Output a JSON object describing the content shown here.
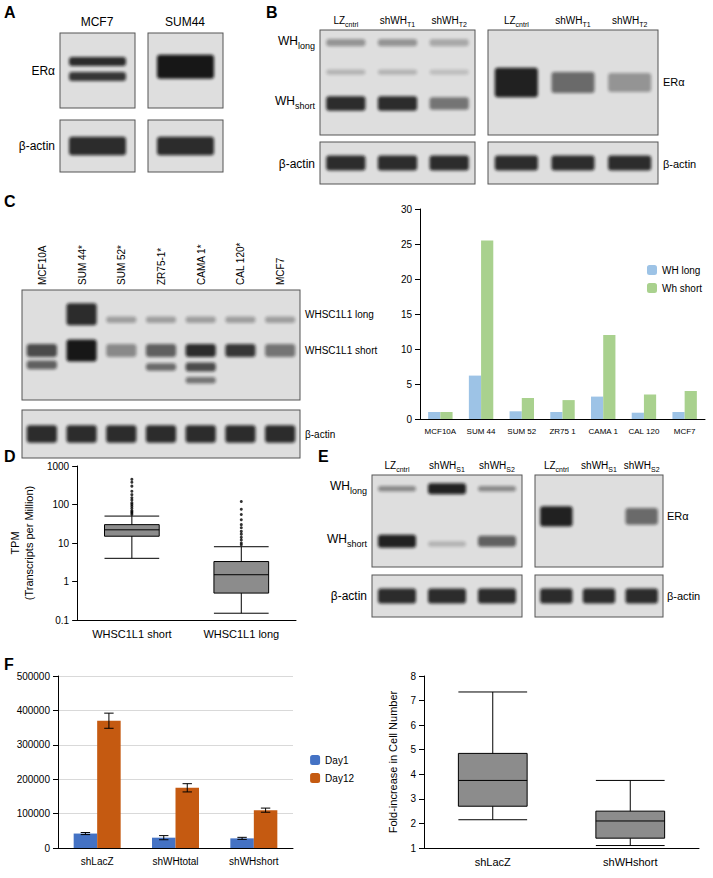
{
  "panel_letters": [
    "A",
    "B",
    "C",
    "D",
    "E",
    "F"
  ],
  "blots": {
    "A": {
      "lanes": [
        "MCF7",
        "SUM44"
      ],
      "rows": [
        "ERα",
        "β-actin"
      ]
    },
    "B": {
      "left": {
        "lanes": [
          {
            "text": "LZ",
            "sub": "cntrl"
          },
          {
            "text": "shWH",
            "sub": "T1"
          },
          {
            "text": "shWH",
            "sub": "T2"
          }
        ],
        "rows": [
          {
            "text": "WH",
            "sub": "long"
          },
          {
            "text": "WH",
            "sub": "short"
          },
          "β-actin"
        ]
      },
      "right": {
        "lanes": [
          {
            "text": "LZ",
            "sub": "cntrl"
          },
          {
            "text": "shWH",
            "sub": "T1"
          },
          {
            "text": "shWH",
            "sub": "T2"
          }
        ],
        "rows": [
          "ERα",
          "β-actin"
        ]
      }
    },
    "C": {
      "lanes": [
        "MCF10A",
        "SUM 44*",
        "SUM 52*",
        "ZR75-1*",
        "CAMA 1*",
        "CAL 120*",
        "MCF7"
      ],
      "rows": [
        "WHSC1L1 long",
        "WHSC1L1 short",
        "β-actin"
      ]
    },
    "E": {
      "left": {
        "lanes": [
          {
            "text": "LZ",
            "sub": "cntrl"
          },
          {
            "text": "shWH",
            "sub": "S1"
          },
          {
            "text": "shWH",
            "sub": "S2"
          }
        ],
        "rows": [
          {
            "text": "WH",
            "sub": "long"
          },
          {
            "text": "WH",
            "sub": "short"
          },
          "β-actin"
        ]
      },
      "right": {
        "lanes": [
          {
            "text": "LZ",
            "sub": "cntrl"
          },
          {
            "text": "shWH",
            "sub": "S1"
          },
          {
            "text": "shWH",
            "sub": "S2"
          }
        ],
        "rows": [
          "ERα",
          "β-actin"
        ]
      }
    }
  },
  "chart_data": [
    {
      "type": "bar",
      "categories": [
        "MCF10A",
        "SUM 44",
        "SUM 52",
        "ZR75 1",
        "CAMA 1",
        "CAL 120",
        "MCF7"
      ],
      "series": [
        {
          "name": "WH long",
          "color": "#9dc3e6",
          "values": [
            1,
            6.2,
            1.1,
            1,
            3.2,
            0.9,
            1
          ]
        },
        {
          "name": "Wh short",
          "color": "#a9d18e",
          "values": [
            1,
            25.5,
            3,
            2.7,
            12,
            3.5,
            4
          ]
        }
      ],
      "ylim": [
        0,
        30
      ],
      "yticks": [
        0,
        5,
        10,
        15,
        20,
        25,
        30
      ],
      "legend": "right",
      "grid": false
    },
    {
      "type": "boxplot",
      "categories": [
        "WHSC1L1 short",
        "WHSC1L1 long"
      ],
      "ylabel": "TPM\n(Transcripts per Million)",
      "log": "y",
      "ylim": [
        0.1,
        1000
      ],
      "yticks": [
        0.1,
        1,
        10,
        100,
        1000
      ],
      "boxes": [
        [
          4,
          15,
          22,
          30,
          50
        ],
        [
          0.15,
          0.5,
          1.5,
          3.3,
          8
        ]
      ],
      "outliers": [
        [
          55,
          60,
          65,
          70,
          80,
          90,
          100,
          110,
          130,
          150,
          180,
          220,
          300,
          380,
          450
        ],
        [
          9,
          10,
          12,
          14,
          17,
          20,
          25,
          30,
          40,
          55,
          75,
          120
        ]
      ],
      "color": "#8c8c8c",
      "marker": "circle",
      "grid": false
    },
    {
      "type": "bar",
      "categories": [
        "shLacZ",
        "shWHtotal",
        "shWHshort"
      ],
      "series": [
        {
          "name": "Day1",
          "color": "#4472c4",
          "values": [
            42000,
            30000,
            28000
          ],
          "errors": [
            3000,
            6000,
            3000
          ]
        },
        {
          "name": "Day12",
          "color": "#c55a11",
          "values": [
            370000,
            175000,
            110000
          ],
          "errors": [
            22000,
            12000,
            6000
          ]
        }
      ],
      "ylim": [
        0,
        500000
      ],
      "yticks": [
        0,
        100000,
        200000,
        300000,
        400000,
        500000
      ],
      "legend": "right",
      "grid": true
    },
    {
      "type": "boxplot",
      "categories": [
        "shLacZ",
        "shWHshort"
      ],
      "ylabel": "Fold-increase in Cell Number",
      "ylim": [
        1,
        8
      ],
      "yticks": [
        1,
        2,
        3,
        4,
        5,
        6,
        7,
        8
      ],
      "boxes": [
        [
          2.15,
          2.7,
          3.75,
          4.85,
          7.35
        ],
        [
          1.1,
          1.4,
          2.1,
          2.5,
          3.75
        ]
      ],
      "color": "#8c8c8c",
      "grid": false
    }
  ]
}
